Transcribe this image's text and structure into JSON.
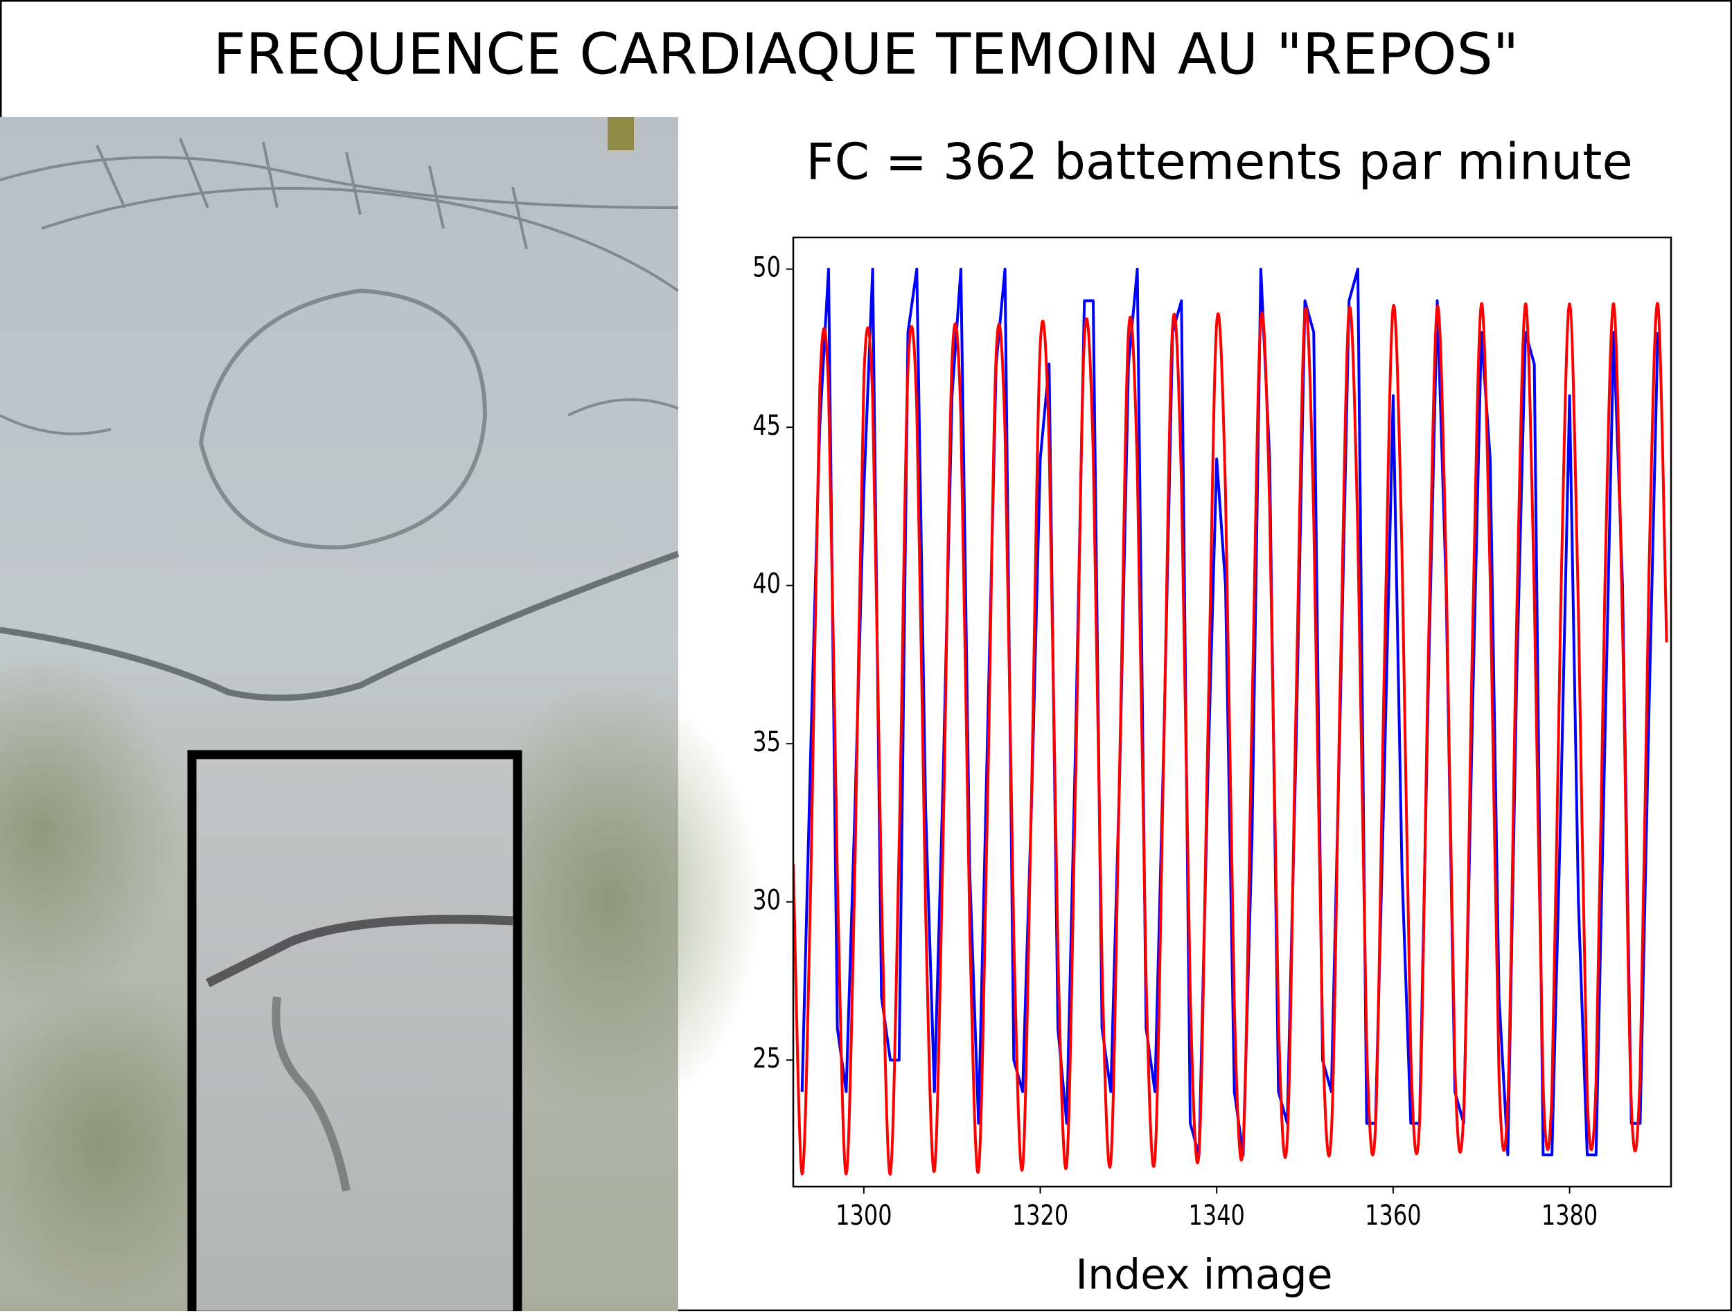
{
  "chart_data": {
    "type": "line",
    "title": "FREQUENCE CARDIAQUE TEMOIN AU \"REPOS\"",
    "subtitle": "FC = 362 battements par minute",
    "xlabel": "Index image",
    "x": [
      1292,
      1293,
      1294,
      1295,
      1296,
      1297,
      1298,
      1299,
      1300,
      1301,
      1302,
      1303,
      1304,
      1305,
      1306,
      1307,
      1308,
      1309,
      1310,
      1311,
      1312,
      1313,
      1314,
      1315,
      1316,
      1317,
      1318,
      1319,
      1320,
      1321,
      1322,
      1323,
      1324,
      1325,
      1326,
      1327,
      1328,
      1329,
      1330,
      1331,
      1332,
      1333,
      1334,
      1335,
      1336,
      1337,
      1338,
      1339,
      1340,
      1341,
      1342,
      1343,
      1344,
      1345,
      1346,
      1347,
      1348,
      1349,
      1350,
      1351,
      1352,
      1353,
      1354,
      1355,
      1356,
      1357,
      1358,
      1359,
      1360,
      1361,
      1362,
      1363,
      1364,
      1365,
      1366,
      1367,
      1368,
      1369,
      1370,
      1371,
      1372,
      1373,
      1374,
      1375,
      1376,
      1377,
      1378,
      1379,
      1380,
      1381,
      1382,
      1383,
      1384,
      1385,
      1386,
      1387,
      1388,
      1389,
      1390,
      1391
    ],
    "series": [
      {
        "color": "#0000ff",
        "values": [
          null,
          24,
          35,
          45,
          50,
          26,
          24,
          33,
          43,
          50,
          27,
          25,
          25,
          48,
          50,
          33,
          24,
          34,
          46,
          50,
          31,
          23,
          35,
          47,
          50,
          25,
          24,
          33,
          44,
          47,
          26,
          23,
          35,
          49,
          49,
          26,
          24,
          34,
          47,
          50,
          26,
          24,
          35,
          48,
          49,
          23,
          22,
          34,
          44,
          40,
          24,
          22,
          32,
          50,
          44,
          24,
          23,
          35,
          49,
          48,
          25,
          24,
          36,
          49,
          50,
          23,
          23,
          34,
          46,
          31,
          23,
          23,
          37,
          49,
          40,
          24,
          23,
          36,
          48,
          44,
          27,
          22,
          37,
          48,
          47,
          22,
          22,
          33,
          46,
          30,
          22,
          22,
          35,
          48,
          40,
          23,
          23,
          36,
          48,
          null
        ]
      },
      {
        "color": "#ff0000",
        "smooth": true,
        "values": [
          31.2,
          21.4,
          30.8,
          46.2,
          46.2,
          30.8,
          21.4,
          31.2,
          46.5,
          45.9,
          30.3,
          21.4,
          31.8,
          46.8,
          45.6,
          29.8,
          21.5,
          32.2,
          47.1,
          45.3,
          29.3,
          21.5,
          32.8,
          47.3,
          44.9,
          28.9,
          21.6,
          33.3,
          47.6,
          44.5,
          28.4,
          21.7,
          33.8,
          47.8,
          44.2,
          28.0,
          21.8,
          34.3,
          48.0,
          43.7,
          27.5,
          21.9,
          34.8,
          48.2,
          43.3,
          27.1,
          22.1,
          35.3,
          48.3,
          42.9,
          26.7,
          22.3,
          35.9,
          48.4,
          42.5,
          26.3,
          22.5,
          36.3,
          48.6,
          42.1,
          25.9,
          22.7,
          36.9,
          48.7,
          41.6,
          25.5,
          22.9,
          37.4,
          48.8,
          41.1,
          25.2,
          23.1,
          37.9,
          48.8,
          40.7,
          24.8,
          23.4,
          38.4,
          48.9,
          40.2,
          24.5,
          23.7,
          38.9,
          48.9,
          39.7,
          24.2,
          24.0,
          39.4,
          48.9,
          39.2,
          23.9,
          24.3,
          39.9,
          48.9,
          38.7,
          23.6,
          24.6,
          40.4,
          48.9,
          38.2
        ]
      }
    ],
    "xlim": [
      1292,
      1391.5
    ],
    "ylim": [
      21,
      51
    ],
    "xticks": [
      1300,
      1320,
      1340,
      1360,
      1380
    ],
    "yticks": [
      25,
      30,
      35,
      40,
      45,
      50
    ]
  }
}
